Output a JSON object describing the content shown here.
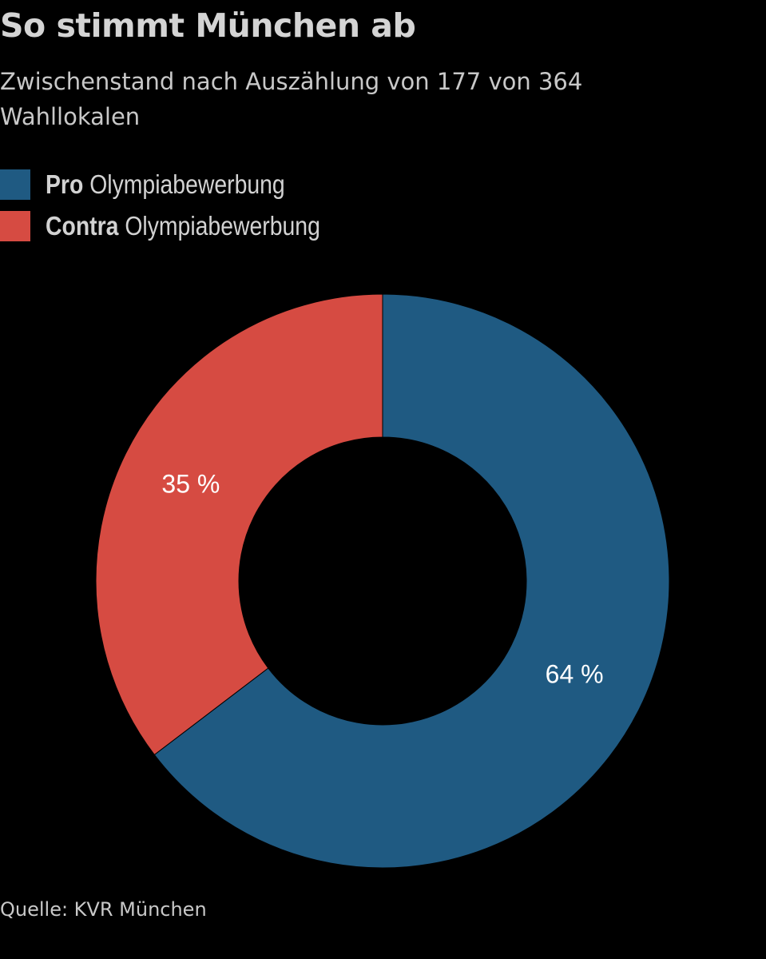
{
  "chart_data": {
    "type": "pie",
    "variant": "donut",
    "title": "So stimmt München ab",
    "subtitle": "Zwischenstand nach Auszählung von 177 von 364 Wahllokalen",
    "series": [
      {
        "name": "Pro",
        "name_suffix": "Olympiabewerbung",
        "value": 64,
        "label": "64 %",
        "color": "#1f5a82"
      },
      {
        "name": "Contra",
        "name_suffix": "Olympiabewerbung",
        "value": 35,
        "label": "35 %",
        "color": "#d64b42"
      }
    ],
    "legend_position": "top-left",
    "source": "Quelle: KVR München"
  },
  "colors": {
    "background": "#000000",
    "text": "#d4d4d4"
  }
}
